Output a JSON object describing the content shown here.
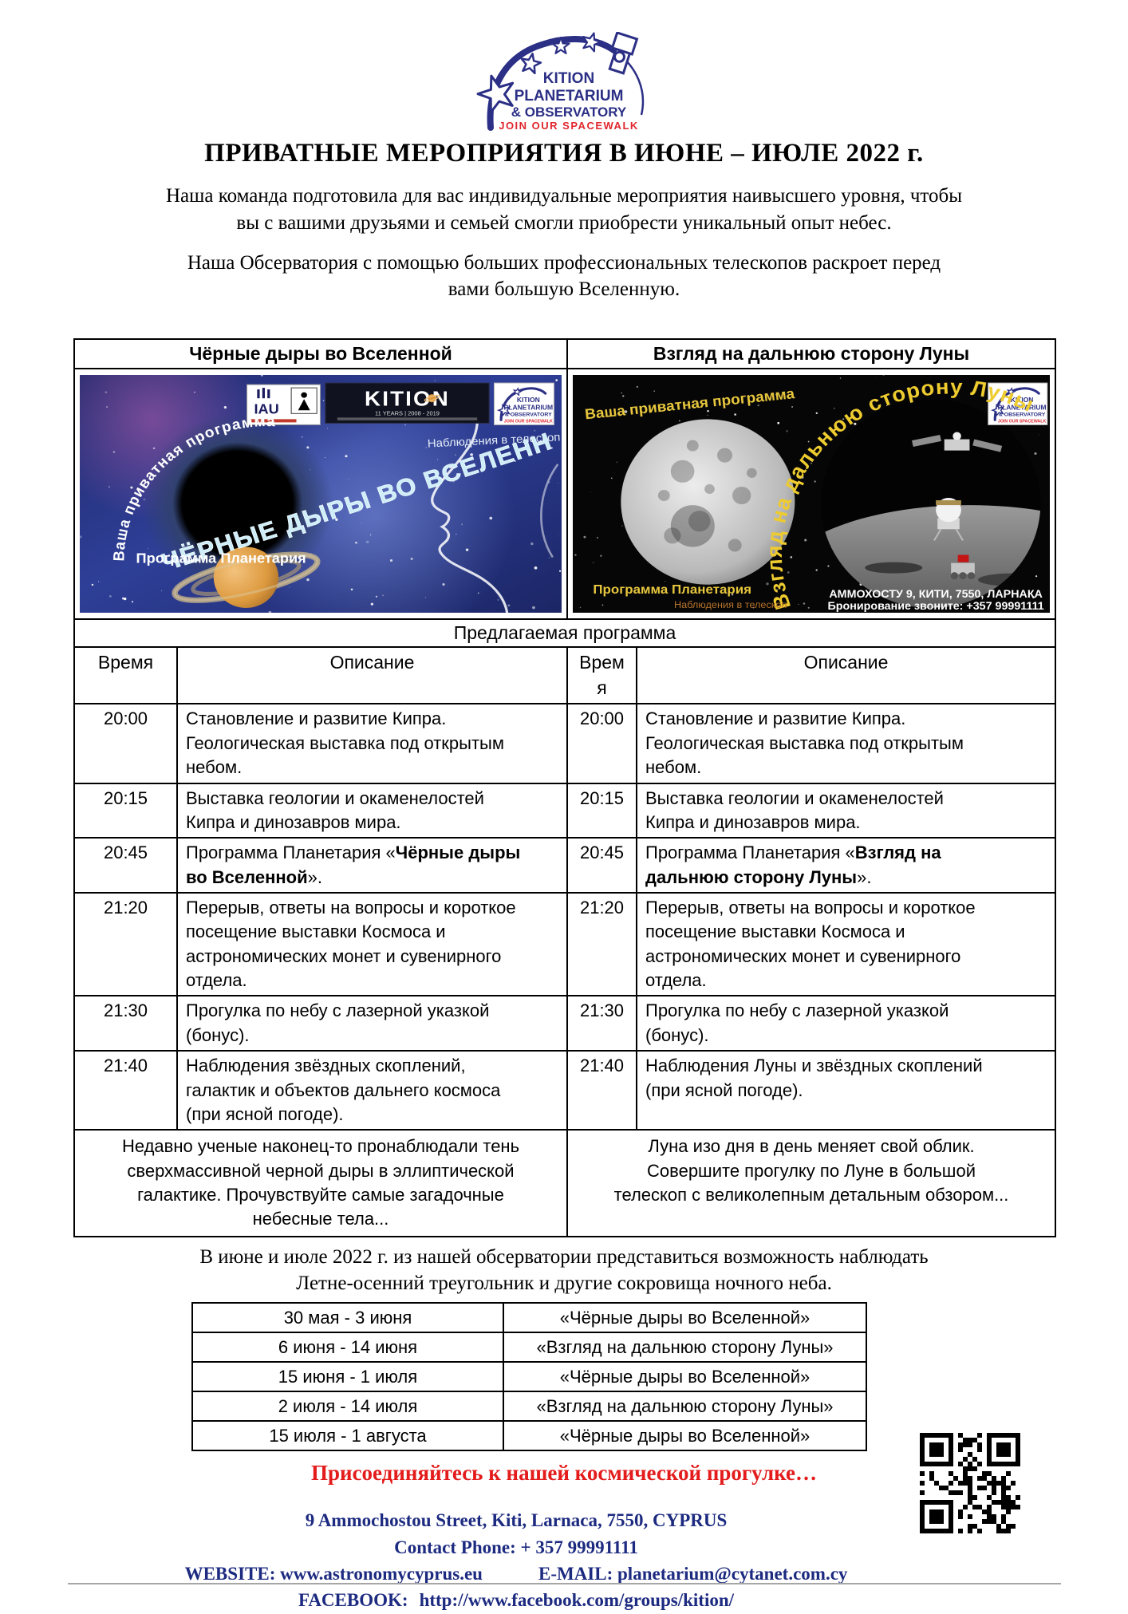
{
  "logo": {
    "line1": "KITION",
    "line2": "PLANETARIUM",
    "line3": "& OBSERVATORY",
    "tagline": "JOIN OUR SPACEWALK",
    "navy": "#2b2f85",
    "red": "#e0262c"
  },
  "title": "ПРИВАТНЫЕ МЕРОПРИЯТИЯ В ИЮНЕ – ИЮЛЕ 2022 г.",
  "intro": {
    "p1": "Наша команда подготовила для вас индивидуальные мероприятия наивысшего уровня, чтобы вы с вашими друзьями и семьей смогли приобрести уникальный опыт небес.",
    "p2": "Наша Обсерватория с помощью больших профессиональных телескопов раскроет перед вами большую Вселенную."
  },
  "program_table": {
    "left_header": "Чёрные дыры во Вселенной",
    "right_header": "Взгляд на дальнюю сторону Луны",
    "section_title": "Предлагаемая программа",
    "col_time": "Время",
    "col_desc": "Описание",
    "rows": [
      {
        "time": "20:00",
        "left": {
          "pre": "Становление и развитие Кипра. Геологическая выставка под открытым небом.",
          "bold": "",
          "post": ""
        },
        "right": {
          "pre": "Становление и развитие Кипра. Геологическая выставка под открытым небом.",
          "bold": "",
          "post": ""
        }
      },
      {
        "time": "20:15",
        "left": {
          "pre": "Выставка геологии и окаменелостей Кипра и динозавров мира.",
          "bold": "",
          "post": ""
        },
        "right": {
          "pre": "Выставка геологии и окаменелостей Кипра и динозавров мира.",
          "bold": "",
          "post": ""
        }
      },
      {
        "time": "20:45",
        "left": {
          "pre": "Программа Планетария «",
          "bold": "Чёрные дыры во Вселенной",
          "post": "»."
        },
        "right": {
          "pre": "Программа Планетария «",
          "bold": "Взгляд на дальнюю сторону Луны",
          "post": "»."
        }
      },
      {
        "time": "21:20",
        "left": {
          "pre": "Перерыв, ответы на вопросы и короткое посещение выставки Космоса и астрономических монет и сувенирного отдела.",
          "bold": "",
          "post": ""
        },
        "right": {
          "pre": "Перерыв, ответы на вопросы и короткое посещение выставки Космоса и астрономических монет и сувенирного отдела.",
          "bold": "",
          "post": ""
        }
      },
      {
        "time": "21:30",
        "left": {
          "pre": "Прогулка по небу с лазерной указкой (бонус).",
          "bold": "",
          "post": ""
        },
        "right": {
          "pre": "Прогулка по небу с лазерной указкой (бонус).",
          "bold": "",
          "post": ""
        }
      },
      {
        "time": "21:40",
        "left": {
          "pre": "Наблюдения звёздных скоплений, галактик и объектов дальнего космоса (при ясной погоде).",
          "bold": "",
          "post": ""
        },
        "right": {
          "pre": "Наблюдения Луны и звёздных скоплений (при ясной погоде).",
          "bold": "",
          "post": ""
        }
      }
    ],
    "left_summary": "Недавно ученые наконец-то пронаблюдали тень сверхмассивной черной дыры в эллиптической галактике. Прочувствуйте самые загадочные небесные тела...",
    "right_summary": "Луна изо дня в день меняет свой облик. Совершите прогулку по Луне в большой телескоп с великолепным детальным обзором..."
  },
  "posters": {
    "left": {
      "private_program": "Ваша приватная программа",
      "observations": "Наблюдения в телескоп",
      "title": "ЧЁРНЫЕ ДЫРЫ ВО ВСЕЛЕННОЙ",
      "program": "Программа Планетария",
      "kition_banner": "KITION",
      "kition_sub": "11 YEARS | 2008 - 2019",
      "iau": "IAU"
    },
    "right": {
      "private_program": "Ваша приватная программа",
      "title": "Взгляд на дальнюю сторону Луны",
      "program": "Программа Планетария",
      "observations": "Наблюдения в телескоп",
      "address": "АММОХОСТУ 9, КИТИ, 7550, ЛАРНАКА",
      "booking": "Бронирование звоните: +357 99991111"
    }
  },
  "observing_note": "В июне и июле 2022 г. из нашей обсерватории представиться возможность наблюдать Летне-осенний треугольник и другие сокровища ночного неба.",
  "schedule": {
    "rows": [
      {
        "dates": "30 мая - 3 июня",
        "program": "«Чёрные дыры во Вселенной»"
      },
      {
        "dates": "6 июня - 14 июня",
        "program": "«Взгляд на дальнюю сторону Луны»"
      },
      {
        "dates": "15 июня - 1 июля",
        "program": "«Чёрные дыры во Вселенной»"
      },
      {
        "dates": "2 июля - 14 июля",
        "program": "«Взгляд на дальнюю сторону Луны»"
      },
      {
        "dates": "15 июля - 1 августа",
        "program": "«Чёрные дыры во Вселенной»"
      }
    ]
  },
  "join_line": "Присоединяйтесь к нашей космической прогулке…",
  "footer": {
    "address": "9 Ammochostou Street, Kiti, Larnaca, 7550, CYPRUS",
    "phone": "Contact Phone: + 357 99991111",
    "website_label": "WEBSITE:",
    "website": "www.astronomycyprus.eu",
    "email_label": "E-MAIL:",
    "email": "planetarium@cytanet.com.cy",
    "facebook_label": "FACEBOOK:",
    "facebook": "http://www.facebook.com/groups/kition/"
  },
  "colors": {
    "navy": "#1c2a80",
    "red": "#e31b1b",
    "black": "#000000"
  }
}
